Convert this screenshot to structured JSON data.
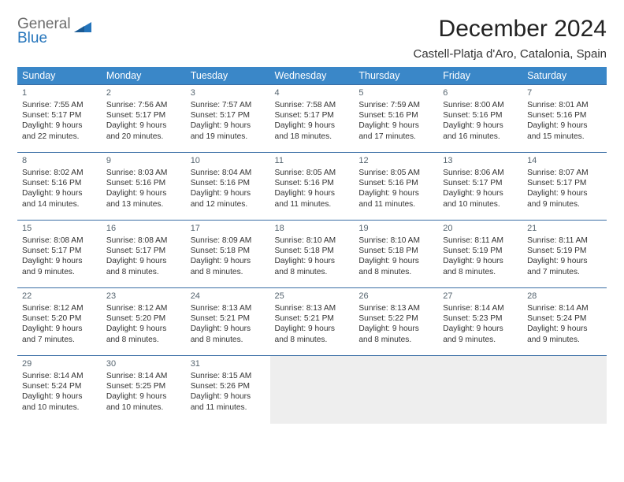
{
  "logo": {
    "line1": "General",
    "line2": "Blue"
  },
  "header": {
    "month_title": "December 2024",
    "location": "Castell-Platja d'Aro, Catalonia, Spain"
  },
  "colors": {
    "header_bg": "#3a87c8",
    "header_text": "#ffffff",
    "border": "#3a6ea5",
    "empty_bg": "#eeeeee",
    "daynum": "#55646f",
    "body_text": "#333333",
    "logo_gray": "#6d6d6d",
    "logo_blue": "#2474bb"
  },
  "calendar": {
    "weekdays": [
      "Sunday",
      "Monday",
      "Tuesday",
      "Wednesday",
      "Thursday",
      "Friday",
      "Saturday"
    ],
    "weeks": [
      [
        {
          "day": "1",
          "sunrise": "Sunrise: 7:55 AM",
          "sunset": "Sunset: 5:17 PM",
          "dl1": "Daylight: 9 hours",
          "dl2": "and 22 minutes."
        },
        {
          "day": "2",
          "sunrise": "Sunrise: 7:56 AM",
          "sunset": "Sunset: 5:17 PM",
          "dl1": "Daylight: 9 hours",
          "dl2": "and 20 minutes."
        },
        {
          "day": "3",
          "sunrise": "Sunrise: 7:57 AM",
          "sunset": "Sunset: 5:17 PM",
          "dl1": "Daylight: 9 hours",
          "dl2": "and 19 minutes."
        },
        {
          "day": "4",
          "sunrise": "Sunrise: 7:58 AM",
          "sunset": "Sunset: 5:17 PM",
          "dl1": "Daylight: 9 hours",
          "dl2": "and 18 minutes."
        },
        {
          "day": "5",
          "sunrise": "Sunrise: 7:59 AM",
          "sunset": "Sunset: 5:16 PM",
          "dl1": "Daylight: 9 hours",
          "dl2": "and 17 minutes."
        },
        {
          "day": "6",
          "sunrise": "Sunrise: 8:00 AM",
          "sunset": "Sunset: 5:16 PM",
          "dl1": "Daylight: 9 hours",
          "dl2": "and 16 minutes."
        },
        {
          "day": "7",
          "sunrise": "Sunrise: 8:01 AM",
          "sunset": "Sunset: 5:16 PM",
          "dl1": "Daylight: 9 hours",
          "dl2": "and 15 minutes."
        }
      ],
      [
        {
          "day": "8",
          "sunrise": "Sunrise: 8:02 AM",
          "sunset": "Sunset: 5:16 PM",
          "dl1": "Daylight: 9 hours",
          "dl2": "and 14 minutes."
        },
        {
          "day": "9",
          "sunrise": "Sunrise: 8:03 AM",
          "sunset": "Sunset: 5:16 PM",
          "dl1": "Daylight: 9 hours",
          "dl2": "and 13 minutes."
        },
        {
          "day": "10",
          "sunrise": "Sunrise: 8:04 AM",
          "sunset": "Sunset: 5:16 PM",
          "dl1": "Daylight: 9 hours",
          "dl2": "and 12 minutes."
        },
        {
          "day": "11",
          "sunrise": "Sunrise: 8:05 AM",
          "sunset": "Sunset: 5:16 PM",
          "dl1": "Daylight: 9 hours",
          "dl2": "and 11 minutes."
        },
        {
          "day": "12",
          "sunrise": "Sunrise: 8:05 AM",
          "sunset": "Sunset: 5:16 PM",
          "dl1": "Daylight: 9 hours",
          "dl2": "and 11 minutes."
        },
        {
          "day": "13",
          "sunrise": "Sunrise: 8:06 AM",
          "sunset": "Sunset: 5:17 PM",
          "dl1": "Daylight: 9 hours",
          "dl2": "and 10 minutes."
        },
        {
          "day": "14",
          "sunrise": "Sunrise: 8:07 AM",
          "sunset": "Sunset: 5:17 PM",
          "dl1": "Daylight: 9 hours",
          "dl2": "and 9 minutes."
        }
      ],
      [
        {
          "day": "15",
          "sunrise": "Sunrise: 8:08 AM",
          "sunset": "Sunset: 5:17 PM",
          "dl1": "Daylight: 9 hours",
          "dl2": "and 9 minutes."
        },
        {
          "day": "16",
          "sunrise": "Sunrise: 8:08 AM",
          "sunset": "Sunset: 5:17 PM",
          "dl1": "Daylight: 9 hours",
          "dl2": "and 8 minutes."
        },
        {
          "day": "17",
          "sunrise": "Sunrise: 8:09 AM",
          "sunset": "Sunset: 5:18 PM",
          "dl1": "Daylight: 9 hours",
          "dl2": "and 8 minutes."
        },
        {
          "day": "18",
          "sunrise": "Sunrise: 8:10 AM",
          "sunset": "Sunset: 5:18 PM",
          "dl1": "Daylight: 9 hours",
          "dl2": "and 8 minutes."
        },
        {
          "day": "19",
          "sunrise": "Sunrise: 8:10 AM",
          "sunset": "Sunset: 5:18 PM",
          "dl1": "Daylight: 9 hours",
          "dl2": "and 8 minutes."
        },
        {
          "day": "20",
          "sunrise": "Sunrise: 8:11 AM",
          "sunset": "Sunset: 5:19 PM",
          "dl1": "Daylight: 9 hours",
          "dl2": "and 8 minutes."
        },
        {
          "day": "21",
          "sunrise": "Sunrise: 8:11 AM",
          "sunset": "Sunset: 5:19 PM",
          "dl1": "Daylight: 9 hours",
          "dl2": "and 7 minutes."
        }
      ],
      [
        {
          "day": "22",
          "sunrise": "Sunrise: 8:12 AM",
          "sunset": "Sunset: 5:20 PM",
          "dl1": "Daylight: 9 hours",
          "dl2": "and 7 minutes."
        },
        {
          "day": "23",
          "sunrise": "Sunrise: 8:12 AM",
          "sunset": "Sunset: 5:20 PM",
          "dl1": "Daylight: 9 hours",
          "dl2": "and 8 minutes."
        },
        {
          "day": "24",
          "sunrise": "Sunrise: 8:13 AM",
          "sunset": "Sunset: 5:21 PM",
          "dl1": "Daylight: 9 hours",
          "dl2": "and 8 minutes."
        },
        {
          "day": "25",
          "sunrise": "Sunrise: 8:13 AM",
          "sunset": "Sunset: 5:21 PM",
          "dl1": "Daylight: 9 hours",
          "dl2": "and 8 minutes."
        },
        {
          "day": "26",
          "sunrise": "Sunrise: 8:13 AM",
          "sunset": "Sunset: 5:22 PM",
          "dl1": "Daylight: 9 hours",
          "dl2": "and 8 minutes."
        },
        {
          "day": "27",
          "sunrise": "Sunrise: 8:14 AM",
          "sunset": "Sunset: 5:23 PM",
          "dl1": "Daylight: 9 hours",
          "dl2": "and 9 minutes."
        },
        {
          "day": "28",
          "sunrise": "Sunrise: 8:14 AM",
          "sunset": "Sunset: 5:24 PM",
          "dl1": "Daylight: 9 hours",
          "dl2": "and 9 minutes."
        }
      ],
      [
        {
          "day": "29",
          "sunrise": "Sunrise: 8:14 AM",
          "sunset": "Sunset: 5:24 PM",
          "dl1": "Daylight: 9 hours",
          "dl2": "and 10 minutes."
        },
        {
          "day": "30",
          "sunrise": "Sunrise: 8:14 AM",
          "sunset": "Sunset: 5:25 PM",
          "dl1": "Daylight: 9 hours",
          "dl2": "and 10 minutes."
        },
        {
          "day": "31",
          "sunrise": "Sunrise: 8:15 AM",
          "sunset": "Sunset: 5:26 PM",
          "dl1": "Daylight: 9 hours",
          "dl2": "and 11 minutes."
        },
        {
          "empty": true
        },
        {
          "empty": true
        },
        {
          "empty": true
        },
        {
          "empty": true
        }
      ]
    ]
  }
}
